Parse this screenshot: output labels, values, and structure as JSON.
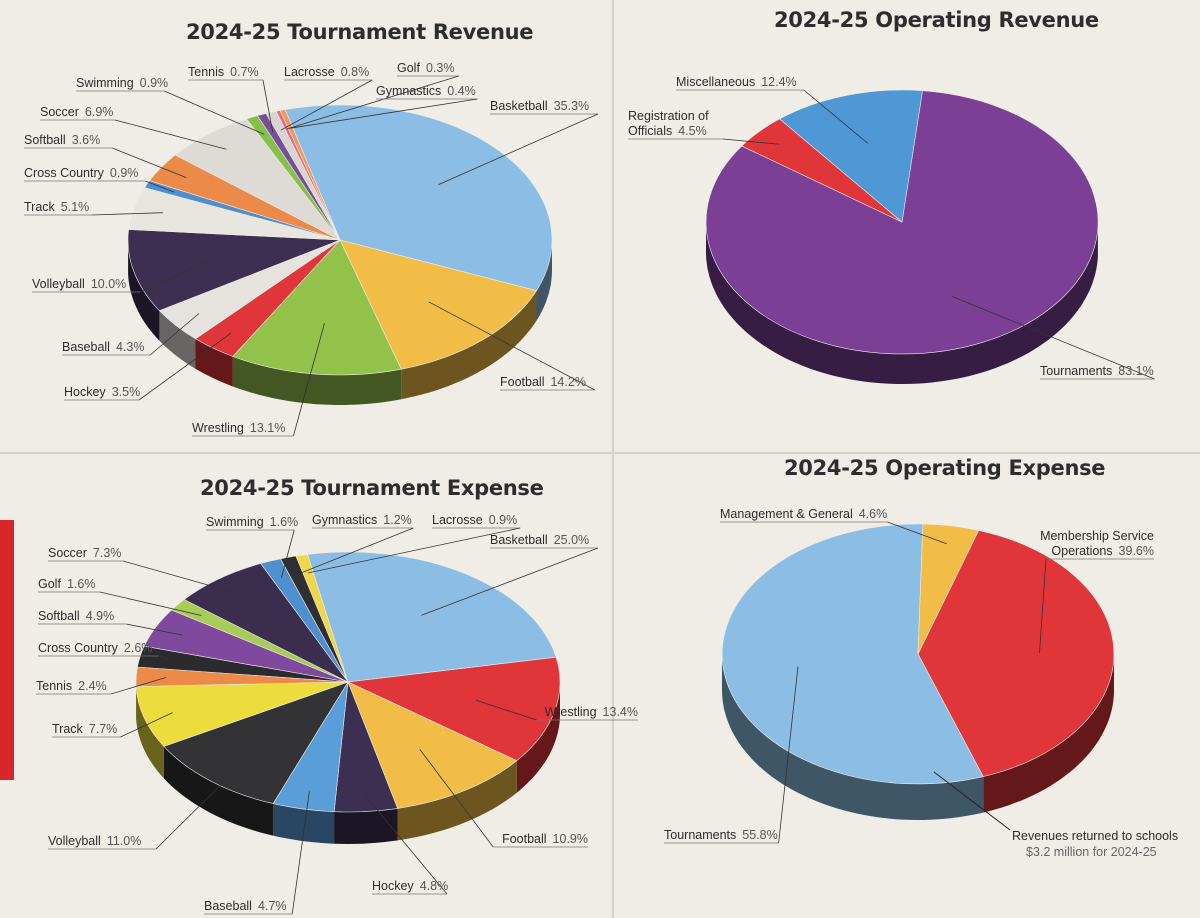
{
  "charts": [
    {
      "id": "tournament-revenue",
      "chart_data": {
        "type": "pie",
        "title": "2024-25 Tournament Revenue",
        "slices": [
          {
            "label": "Basketball",
            "pct_text": "35.3%",
            "value": 35.3,
            "color": "#8cbee5"
          },
          {
            "label": "Football",
            "pct_text": "14.2%",
            "value": 14.2,
            "color": "#f2bd47"
          },
          {
            "label": "Wrestling",
            "pct_text": "13.1%",
            "value": 13.1,
            "color": "#92c24a"
          },
          {
            "label": "Hockey",
            "pct_text": "3.5%",
            "value": 3.5,
            "color": "#e0363a"
          },
          {
            "label": "Baseball",
            "pct_text": "4.3%",
            "value": 4.3,
            "color": "#e6e3de"
          },
          {
            "label": "Volleyball",
            "pct_text": "10.0%",
            "value": 10.0,
            "color": "#3d2f52"
          },
          {
            "label": "Track",
            "pct_text": "5.1%",
            "value": 5.1,
            "color": "#e9e6e0"
          },
          {
            "label": "Cross Country",
            "pct_text": "0.9%",
            "value": 0.9,
            "color": "#4e8fd0"
          },
          {
            "label": "Softball",
            "pct_text": "3.6%",
            "value": 3.6,
            "color": "#ec8a4a"
          },
          {
            "label": "Soccer",
            "pct_text": "6.9%",
            "value": 6.9,
            "color": "#dedad5"
          },
          {
            "label": "Swimming",
            "pct_text": "0.9%",
            "value": 0.9,
            "color": "#86bf4a"
          },
          {
            "label": "Tennis",
            "pct_text": "0.7%",
            "value": 0.7,
            "color": "#7a4f9a"
          },
          {
            "label": "Lacrosse",
            "pct_text": "0.8%",
            "value": 0.8,
            "color": "#d8d4cf"
          },
          {
            "label": "Golf",
            "pct_text": "0.3%",
            "value": 0.3,
            "color": "#e46a8a"
          },
          {
            "label": "Gymnastics",
            "pct_text": "0.4%",
            "value": 0.4,
            "color": "#ef9a58"
          }
        ]
      }
    },
    {
      "id": "operating-revenue",
      "chart_data": {
        "type": "pie",
        "title": "2024-25 Operating Revenue",
        "slices": [
          {
            "label": "Tournaments",
            "pct_text": "83.1%",
            "value": 83.1,
            "color": "#7b3f96"
          },
          {
            "label": "Registration of Officials",
            "label_lines": [
              "Registration of",
              "Officials"
            ],
            "pct_text": "4.5%",
            "value": 4.5,
            "color": "#e0363a"
          },
          {
            "label": "Miscellaneous",
            "pct_text": "12.4%",
            "value": 12.4,
            "color": "#4e98d6"
          }
        ]
      }
    },
    {
      "id": "tournament-expense",
      "chart_data": {
        "type": "pie",
        "title": "2024-25 Tournament Expense",
        "slices": [
          {
            "label": "Basketball",
            "pct_text": "25.0%",
            "value": 25.0,
            "color": "#8cbee5"
          },
          {
            "label": "Wrestling",
            "pct_text": "13.4%",
            "value": 13.4,
            "color": "#e0363a"
          },
          {
            "label": "Football",
            "pct_text": "10.9%",
            "value": 10.9,
            "color": "#f2bd47"
          },
          {
            "label": "Hockey",
            "pct_text": "4.8%",
            "value": 4.8,
            "color": "#3d2f52"
          },
          {
            "label": "Baseball",
            "pct_text": "4.7%",
            "value": 4.7,
            "color": "#5a9ed9"
          },
          {
            "label": "Volleyball",
            "pct_text": "11.0%",
            "value": 11.0,
            "color": "#333335"
          },
          {
            "label": "Track",
            "pct_text": "7.7%",
            "value": 7.7,
            "color": "#ecdd3c"
          },
          {
            "label": "Tennis",
            "pct_text": "2.4%",
            "value": 2.4,
            "color": "#ec8a4a"
          },
          {
            "label": "Cross Country",
            "label_lines": [
              "Cross Country"
            ],
            "pct_text": "2.6%",
            "value": 2.6,
            "color": "#2b2b2f"
          },
          {
            "label": "Softball",
            "pct_text": "4.9%",
            "value": 4.9,
            "color": "#7f4a9e"
          },
          {
            "label": "Golf",
            "pct_text": "1.6%",
            "value": 1.6,
            "color": "#a7cc57"
          },
          {
            "label": "Soccer",
            "pct_text": "7.3%",
            "value": 7.3,
            "color": "#3a2d4e"
          },
          {
            "label": "Swimming",
            "pct_text": "1.6%",
            "value": 1.6,
            "color": "#4e8fd0"
          },
          {
            "label": "Gymnastics",
            "pct_text": "1.2%",
            "value": 1.2,
            "color": "#2f2f33"
          },
          {
            "label": "Lacrosse",
            "pct_text": "0.9%",
            "value": 0.9,
            "color": "#efd74a"
          }
        ]
      }
    },
    {
      "id": "operating-expense",
      "chart_data": {
        "type": "pie",
        "title": "2024-25 Operating Expense",
        "slices": [
          {
            "label": "Membership Service Operations",
            "label_lines": [
              "Membership Service",
              "Operations"
            ],
            "pct_text": "39.6%",
            "value": 39.6,
            "color": "#e0363a"
          },
          {
            "label": "Tournaments",
            "pct_text": "55.8%",
            "value": 55.8,
            "color": "#8cbee5"
          },
          {
            "label": "Management & General",
            "pct_text": "4.6%",
            "value": 4.6,
            "color": "#f2bd47"
          }
        ],
        "annotation": {
          "line1": "Revenues returned to schools",
          "line2": "$3.2 million for 2024-25"
        }
      }
    }
  ]
}
